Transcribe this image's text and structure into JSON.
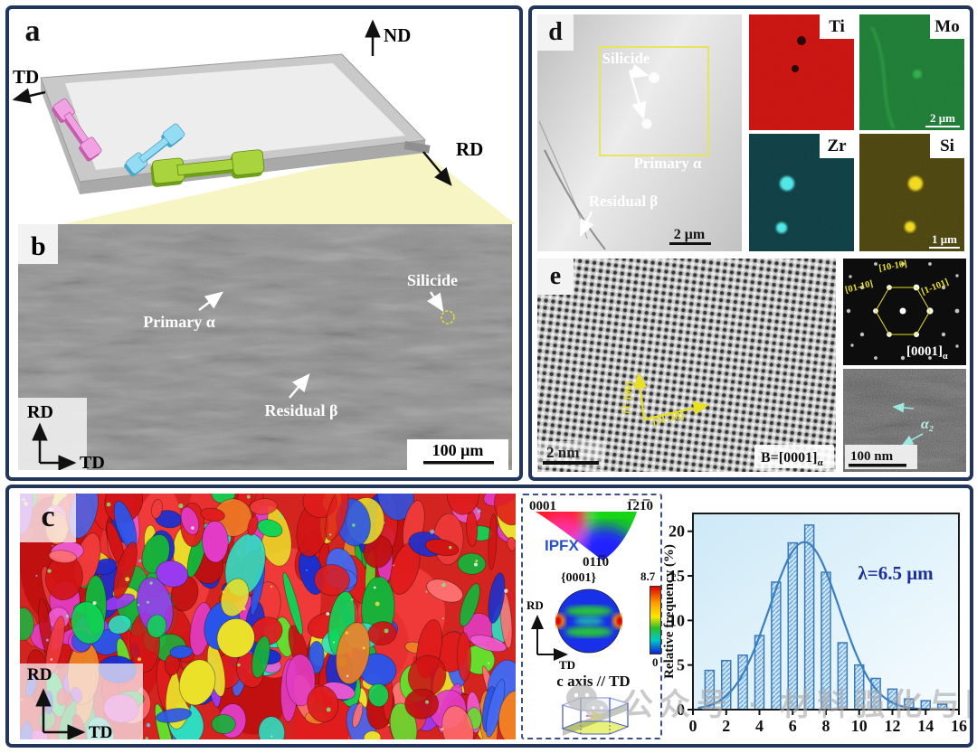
{
  "panel_a": {
    "label": "a",
    "axis_nd": "ND",
    "axis_td": "TD",
    "axis_rd": "RD",
    "specimen_colors": {
      "pink": "#f0a2e2",
      "blue": "#93dcf4",
      "green": "#a9d43e"
    }
  },
  "panel_b": {
    "label": "b",
    "ann_primary": "Primary α",
    "ann_silicide": "Silicide",
    "ann_residual": "Residual β",
    "axis_v": "RD",
    "axis_h": "TD",
    "scale_bar": "100 μm"
  },
  "panel_d": {
    "label": "d",
    "ann_silicide": "Silicide",
    "ann_primary": "Primary α",
    "ann_residual": "Residual β",
    "scale_bar": "2 μm",
    "eds": {
      "ti": "Ti",
      "mo": "Mo",
      "zr": "Zr",
      "si": "Si",
      "mo_scale": "2 μm",
      "si_scale": "1 μm",
      "ti_color": "#c81411",
      "mo_color": "#1d7a33",
      "zr_color": "#0e3d42",
      "si_color": "#4a430f"
    }
  },
  "panel_e": {
    "label": "e",
    "dir_up": "[1-100]",
    "dir_right": "[11-20]",
    "scale_bar": "2 nm",
    "beam": "B=[0001]",
    "alpha": "α",
    "diff_spot1": "[01-10]",
    "diff_spot2": "[10-10]",
    "diff_spot3": "[1-101]",
    "diff_zone": "[0001]",
    "dark_phase": "α₂",
    "dark_scale": "100 nm"
  },
  "panel_c": {
    "label": "c",
    "axis_v": "RD",
    "axis_h": "TD",
    "legend": {
      "pole_top_left": "0001",
      "pole_top_right": "1̅21̅0",
      "pole_bottom": "011̅0",
      "ipf": "IPFX",
      "pf_label": "{0001}",
      "scale_max": "8.7",
      "scale_min": "0",
      "axis_v": "RD",
      "axis_h": "TD",
      "note": "c axis // TD"
    }
  },
  "chart_data": {
    "type": "bar",
    "title": "",
    "xlabel": "",
    "ylabel": "Relative frequency (%)",
    "x": [
      1,
      2,
      3,
      4,
      5,
      6,
      7,
      8,
      9,
      10,
      11,
      12,
      13,
      14,
      15
    ],
    "values": [
      4.4,
      5.5,
      6.1,
      8.3,
      14.3,
      18.7,
      20.7,
      15.4,
      7.5,
      5.0,
      3.5,
      2.3,
      1.2,
      1.0,
      0.6
    ],
    "xlim": [
      0,
      16
    ],
    "ylim": [
      0,
      22
    ],
    "xticks": [
      0,
      2,
      4,
      6,
      8,
      10,
      12,
      14,
      16
    ],
    "yticks": [
      0,
      5,
      10,
      15,
      20
    ],
    "annotation": "λ=6.5 μm",
    "fit_curve": {
      "shape": "gaussian",
      "mean": 6.7,
      "sigma": 2.1,
      "amplitude": 18.8
    },
    "bar_color": "#cfe6f7",
    "bar_edge": "#3b79bb",
    "curve_color": "#3a7fc1",
    "grid": false,
    "legend_position": "none"
  },
  "watermark": "公众号 · 材料强化与防护"
}
